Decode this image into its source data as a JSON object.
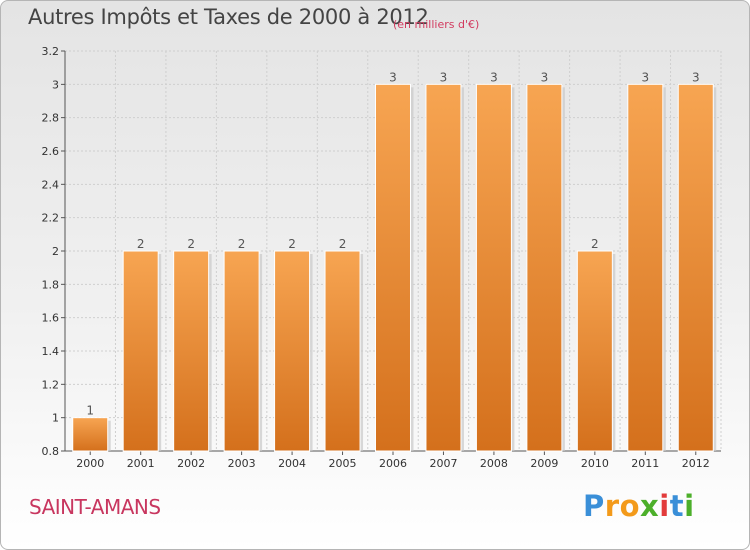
{
  "chart_data": {
    "type": "bar",
    "title": "Autres Impôts et Taxes de 2000 à 2012",
    "subtitle": "(en milliers d'€)",
    "categories": [
      "2000",
      "2001",
      "2002",
      "2003",
      "2004",
      "2005",
      "2006",
      "2007",
      "2008",
      "2009",
      "2010",
      "2011",
      "2012"
    ],
    "values": [
      1,
      2,
      2,
      2,
      2,
      2,
      3,
      3,
      3,
      3,
      2,
      3,
      3
    ],
    "value_labels": [
      "1",
      "2",
      "2",
      "2",
      "2",
      "2",
      "3",
      "3",
      "3",
      "3",
      "2",
      "3",
      "3"
    ],
    "ylim": [
      0.8,
      3.2
    ],
    "yticks": [
      0.8,
      1,
      1.2,
      1.4,
      1.6,
      1.8,
      2,
      2.2,
      2.4,
      2.6,
      2.8,
      3,
      3.2
    ],
    "ytick_labels": [
      "0.8",
      "1",
      "1.2",
      "1.4",
      "1.6",
      "1.8",
      "2",
      "2.2",
      "2.4",
      "2.6",
      "2.8",
      "3",
      "3.2"
    ],
    "grid": true,
    "bar_color": "#f0913a"
  },
  "footer": {
    "place": "SAINT-AMANS",
    "logo_letters": [
      "P",
      "r",
      "o",
      "x",
      "i",
      "t",
      "i"
    ],
    "logo_colors": [
      "#3a8fd8",
      "#f39a1a",
      "#f39a1a",
      "#4caf2a",
      "#e23b3b",
      "#3a8fd8",
      "#4caf2a"
    ]
  }
}
